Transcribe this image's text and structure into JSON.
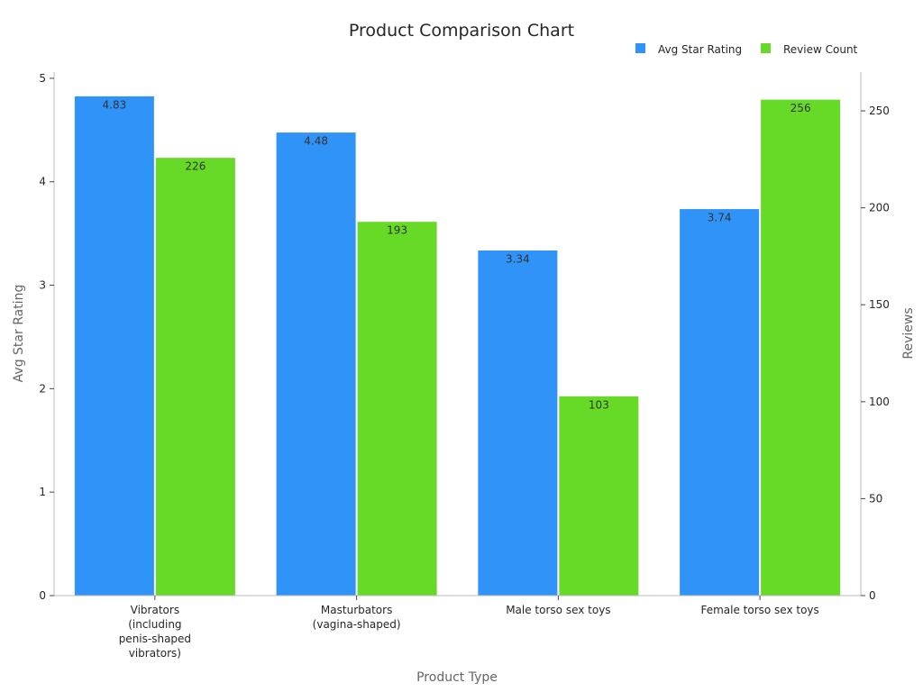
{
  "chart_data": {
    "type": "bar",
    "title": "Product Comparison Chart",
    "xlabel": "Product Type",
    "ylabel": "Avg Star Rating",
    "y2label": "Reviews",
    "categories": [
      [
        "Vibrators",
        "(including",
        "penis-shaped",
        "vibrators)"
      ],
      [
        "Masturbators",
        "(vagina-shaped)"
      ],
      [
        "Male torso sex toys"
      ],
      [
        "Female torso sex toys"
      ]
    ],
    "series": [
      {
        "name": "Avg Star Rating",
        "axis": "left",
        "color": "#2f93f7",
        "values": [
          4.83,
          4.48,
          3.34,
          3.74
        ],
        "labels": [
          "4.83",
          "4.48",
          "3.34",
          "3.74"
        ]
      },
      {
        "name": "Review Count",
        "axis": "right",
        "color": "#66da26",
        "values": [
          226,
          193,
          103,
          256
        ],
        "labels": [
          "226",
          "193",
          "103",
          "256"
        ]
      }
    ],
    "ylim": [
      0,
      5.06
    ],
    "y2lim": [
      0,
      270
    ],
    "yticks": [
      0,
      1,
      2,
      3,
      4,
      5
    ],
    "y2ticks": [
      0,
      50,
      100,
      150,
      200,
      250
    ],
    "legend_position": "top-right",
    "grid": false
  }
}
